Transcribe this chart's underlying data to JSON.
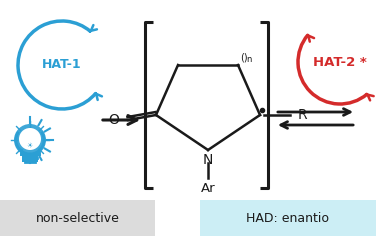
{
  "bg_color": "#ffffff",
  "blue_color": "#2b9fd4",
  "red_color": "#d42b2b",
  "black_color": "#1a1a1a",
  "gray_box_color": "#dcdcdc",
  "cyan_box_color": "#cceef5",
  "hat1_label": "HAT-1",
  "hat2_label": "HAT-2",
  "hat2_star": "*",
  "label_nonselective": "non-selective",
  "label_had": "HAD: enantio",
  "fig_width": 3.76,
  "fig_height": 2.36,
  "dpi": 100
}
